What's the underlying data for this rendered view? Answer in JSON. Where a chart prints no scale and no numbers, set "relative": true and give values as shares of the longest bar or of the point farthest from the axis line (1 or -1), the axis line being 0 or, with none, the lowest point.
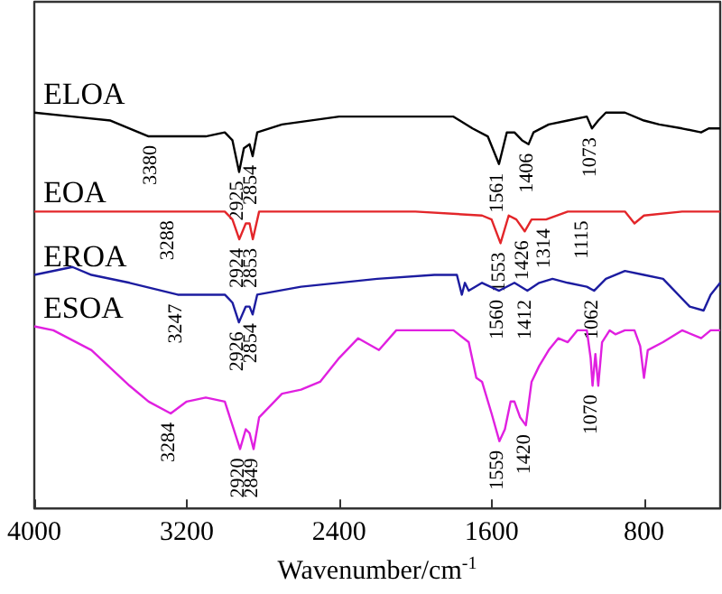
{
  "chart_data": {
    "type": "line",
    "relative": true,
    "xlabel": "Wavenumber/cm$^{-1}$",
    "xlim": [
      4000,
      400
    ],
    "xticks": [
      4000,
      3200,
      2400,
      1600,
      800
    ],
    "grid": false,
    "legend": false,
    "marker": "none",
    "line_style": "solid",
    "series": [
      {
        "name": "ELOA",
        "color": "#000000",
        "x": [
          4000,
          3800,
          3600,
          3400,
          3300,
          3100,
          3000,
          2960,
          2925,
          2900,
          2870,
          2854,
          2830,
          2700,
          2400,
          2000,
          1800,
          1700,
          1620,
          1561,
          1520,
          1480,
          1440,
          1406,
          1380,
          1300,
          1200,
          1100,
          1073,
          1040,
          1000,
          900,
          800,
          720,
          600,
          500,
          460,
          400
        ],
        "values": [
          1.0,
          0.99,
          0.98,
          0.94,
          0.94,
          0.94,
          0.95,
          0.93,
          0.85,
          0.91,
          0.92,
          0.89,
          0.95,
          0.97,
          0.99,
          0.99,
          0.99,
          0.96,
          0.94,
          0.87,
          0.95,
          0.95,
          0.93,
          0.92,
          0.95,
          0.97,
          0.98,
          0.99,
          0.96,
          0.98,
          1.0,
          1.0,
          0.98,
          0.97,
          0.96,
          0.95,
          0.96,
          0.96
        ]
      },
      {
        "name": "EOA",
        "color": "#e3262a",
        "x": [
          4000,
          3600,
          3300,
          3000,
          2960,
          2924,
          2890,
          2870,
          2853,
          2820,
          2400,
          2000,
          1650,
          1600,
          1553,
          1510,
          1470,
          1426,
          1390,
          1314,
          1200,
          1115,
          1000,
          900,
          850,
          800,
          600,
          400
        ],
        "values": [
          0.75,
          0.75,
          0.75,
          0.75,
          0.73,
          0.68,
          0.72,
          0.72,
          0.68,
          0.75,
          0.75,
          0.75,
          0.74,
          0.73,
          0.67,
          0.74,
          0.73,
          0.7,
          0.73,
          0.73,
          0.75,
          0.75,
          0.75,
          0.75,
          0.72,
          0.74,
          0.75,
          0.75
        ]
      },
      {
        "name": "EROA",
        "color": "#1c1ca0",
        "x": [
          4000,
          3800,
          3700,
          3500,
          3247,
          3000,
          2960,
          2926,
          2890,
          2870,
          2854,
          2830,
          2600,
          2200,
          1900,
          1782,
          1756,
          1740,
          1720,
          1650,
          1560,
          1480,
          1412,
          1350,
          1280,
          1200,
          1100,
          1062,
          1000,
          900,
          800,
          700,
          560,
          487,
          450,
          400
        ],
        "values": [
          0.59,
          0.61,
          0.59,
          0.57,
          0.54,
          0.54,
          0.52,
          0.47,
          0.51,
          0.51,
          0.49,
          0.54,
          0.56,
          0.58,
          0.59,
          0.59,
          0.54,
          0.57,
          0.55,
          0.57,
          0.55,
          0.57,
          0.55,
          0.57,
          0.58,
          0.57,
          0.56,
          0.55,
          0.58,
          0.6,
          0.59,
          0.58,
          0.51,
          0.5,
          0.54,
          0.57
        ]
      },
      {
        "name": "ESOA",
        "color": "#e020e0",
        "x": [
          4000,
          3900,
          3700,
          3500,
          3400,
          3284,
          3200,
          3100,
          3000,
          2960,
          2920,
          2890,
          2870,
          2849,
          2820,
          2700,
          2600,
          2500,
          2400,
          2300,
          2191,
          2100,
          2000,
          1800,
          1720,
          1680,
          1650,
          1600,
          1559,
          1530,
          1500,
          1480,
          1450,
          1420,
          1390,
          1350,
          1300,
          1250,
          1200,
          1150,
          1100,
          1080,
          1070,
          1055,
          1040,
          1020,
          980,
          950,
          900,
          850,
          820,
          800,
          780,
          700,
          600,
          500,
          450,
          400
        ],
        "values": [
          0.46,
          0.45,
          0.4,
          0.31,
          0.27,
          0.24,
          0.27,
          0.28,
          0.27,
          0.21,
          0.15,
          0.2,
          0.19,
          0.15,
          0.23,
          0.29,
          0.3,
          0.32,
          0.38,
          0.43,
          0.4,
          0.45,
          0.45,
          0.45,
          0.42,
          0.33,
          0.32,
          0.24,
          0.17,
          0.2,
          0.27,
          0.27,
          0.23,
          0.21,
          0.32,
          0.36,
          0.4,
          0.43,
          0.42,
          0.45,
          0.45,
          0.38,
          0.31,
          0.39,
          0.31,
          0.42,
          0.45,
          0.44,
          0.45,
          0.45,
          0.41,
          0.33,
          0.4,
          0.42,
          0.45,
          0.43,
          0.45,
          0.45
        ]
      }
    ],
    "annotations": [
      {
        "text": "3380",
        "x": 3380,
        "y": 0.94
      },
      {
        "text": "2925",
        "x": 2925,
        "y": 0.85
      },
      {
        "text": "2854",
        "x": 2854,
        "y": 0.89
      },
      {
        "text": "1561",
        "x": 1561,
        "y": 0.87
      },
      {
        "text": "1406",
        "x": 1406,
        "y": 0.92
      },
      {
        "text": "1073",
        "x": 1073,
        "y": 0.96
      },
      {
        "text": "3288",
        "x": 3288,
        "y": 0.75
      },
      {
        "text": "2924",
        "x": 2924,
        "y": 0.68
      },
      {
        "text": "2853",
        "x": 2853,
        "y": 0.68
      },
      {
        "text": "1553",
        "x": 1553,
        "y": 0.67
      },
      {
        "text": "1426",
        "x": 1426,
        "y": 0.7
      },
      {
        "text": "1314",
        "x": 1314,
        "y": 0.73
      },
      {
        "text": "1115",
        "x": 1115,
        "y": 0.75
      },
      {
        "text": "3247",
        "x": 3247,
        "y": 0.54
      },
      {
        "text": "2926",
        "x": 2926,
        "y": 0.47
      },
      {
        "text": "2854",
        "x": 2854,
        "y": 0.49
      },
      {
        "text": "1560",
        "x": 1560,
        "y": 0.55
      },
      {
        "text": "1412",
        "x": 1412,
        "y": 0.55
      },
      {
        "text": "1062",
        "x": 1062,
        "y": 0.55
      },
      {
        "text": "3284",
        "x": 3284,
        "y": 0.24
      },
      {
        "text": "2920",
        "x": 2920,
        "y": 0.15
      },
      {
        "text": "2849",
        "x": 2849,
        "y": 0.15
      },
      {
        "text": "1559",
        "x": 1559,
        "y": 0.17
      },
      {
        "text": "1420",
        "x": 1420,
        "y": 0.21
      },
      {
        "text": "1070",
        "x": 1070,
        "y": 0.31
      }
    ]
  }
}
